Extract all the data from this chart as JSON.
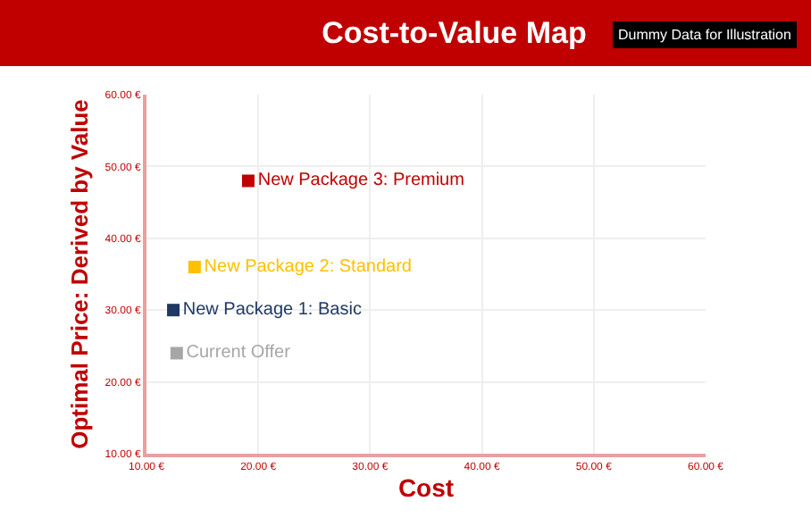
{
  "chart_data": {
    "type": "scatter",
    "title": "Cost-to-Value Map",
    "annotations": [
      "Dummy Data for Illustration"
    ],
    "xlabel": "Cost",
    "ylabel": "Optimal Price: Derived by Value",
    "xlim": [
      10,
      60
    ],
    "ylim": [
      10,
      60
    ],
    "xticks": [
      {
        "value": 10,
        "label": "10.00 €"
      },
      {
        "value": 20,
        "label": "20.00 €"
      },
      {
        "value": 30,
        "label": "30.00 €"
      },
      {
        "value": 40,
        "label": "40.00 €"
      },
      {
        "value": 50,
        "label": "50.00 €"
      },
      {
        "value": 60,
        "label": "60.00 €"
      }
    ],
    "yticks": [
      {
        "value": 10,
        "label": "10.00 €"
      },
      {
        "value": 20,
        "label": "20.00 €"
      },
      {
        "value": 30,
        "label": "30.00 €"
      },
      {
        "value": 40,
        "label": "40.00 €"
      },
      {
        "value": 50,
        "label": "50.00 €"
      },
      {
        "value": 60,
        "label": "60.00 €"
      }
    ],
    "grid": true,
    "marker": "square",
    "series": [
      {
        "name": "New Package 3: Premium",
        "color": "#c00000",
        "x": [
          19.1
        ],
        "values": [
          48
        ]
      },
      {
        "name": "New Package 2: Standard",
        "color": "#ffc000",
        "x": [
          14.3
        ],
        "values": [
          36
        ]
      },
      {
        "name": "New Package 1: Basic",
        "color": "#1f3864",
        "x": [
          12.4
        ],
        "values": [
          30
        ]
      },
      {
        "name": "Current Offer",
        "color": "#a6a6a6",
        "x": [
          12.7
        ],
        "values": [
          24
        ]
      }
    ]
  }
}
